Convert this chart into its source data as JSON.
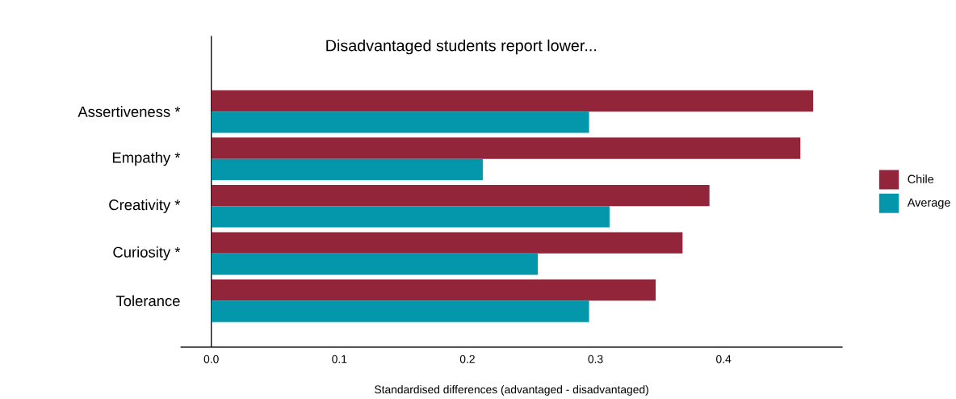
{
  "chart_data": {
    "type": "bar",
    "orientation": "horizontal",
    "title": "Disadvantaged students report lower...",
    "xlabel": "Standardised differences (advantaged - disadvantaged)",
    "categories": [
      "Assertiveness *",
      "Empathy *",
      "Creativity *",
      "Curiosity *",
      "Tolerance"
    ],
    "series": [
      {
        "name": "Chile",
        "color": "#93253b",
        "values": [
          0.47,
          0.46,
          0.389,
          0.368,
          0.347
        ]
      },
      {
        "name": "Average",
        "color": "#0496ab",
        "values": [
          0.295,
          0.212,
          0.311,
          0.255,
          0.295
        ]
      }
    ],
    "xlim": [
      -0.024,
      0.493
    ],
    "xticks": [
      {
        "value": 0,
        "label": "0.0"
      },
      0.1,
      0.2,
      0.3,
      0.4
    ],
    "legend": "right"
  }
}
